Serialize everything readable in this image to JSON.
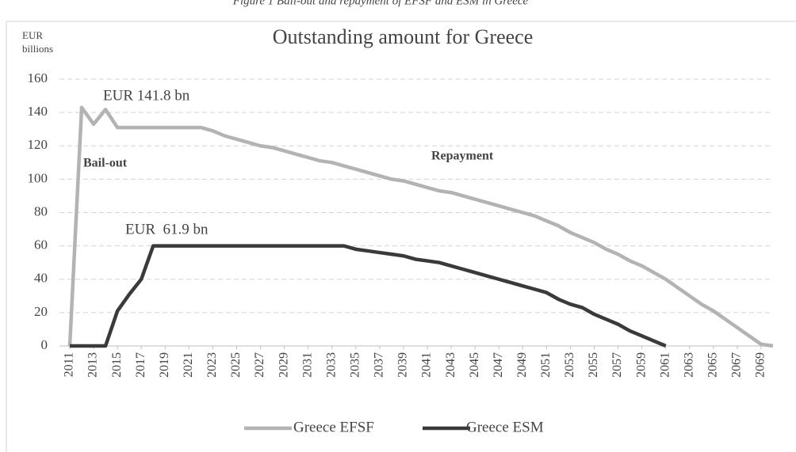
{
  "chart_data": {
    "type": "line",
    "caption": "Figure 1 Bail-out and repayment of EFSF and ESM in Greece",
    "title": "Outstanding amount for Greece",
    "y_label": [
      "EUR",
      "billions"
    ],
    "annotations": [
      "EUR 141.8 bn",
      "EUR  61.9 bn",
      "Bail-out",
      "Repayment"
    ],
    "x": [
      2011,
      2012,
      2013,
      2014,
      2015,
      2016,
      2017,
      2018,
      2019,
      2020,
      2021,
      2022,
      2023,
      2024,
      2025,
      2026,
      2027,
      2028,
      2029,
      2030,
      2031,
      2032,
      2033,
      2034,
      2035,
      2036,
      2037,
      2038,
      2039,
      2040,
      2041,
      2042,
      2043,
      2044,
      2045,
      2046,
      2047,
      2048,
      2049,
      2050,
      2051,
      2052,
      2053,
      2054,
      2055,
      2056,
      2057,
      2058,
      2059,
      2060,
      2061,
      2062,
      2063,
      2064,
      2065,
      2066,
      2067,
      2068,
      2069,
      2070
    ],
    "series": [
      {
        "name": "Greece EFSF",
        "color": "#b3b3b3",
        "values": [
          0,
          143,
          133,
          141.8,
          131,
          131,
          131,
          131,
          131,
          131,
          131,
          131,
          129,
          126,
          124,
          122,
          120,
          119,
          117,
          115,
          113,
          111,
          110,
          108,
          106,
          104,
          102,
          100,
          99,
          97,
          95,
          93,
          92,
          90,
          88,
          86,
          84,
          82,
          80,
          78,
          75,
          72,
          68,
          65,
          62,
          58,
          55,
          51,
          48,
          44,
          40,
          35,
          30,
          25,
          21,
          16,
          11,
          6,
          1,
          0
        ]
      },
      {
        "name": "Greece ESM",
        "color": "#3a3a3a",
        "values": [
          0,
          0,
          0,
          0,
          21,
          31,
          40,
          60,
          60,
          60,
          60,
          60,
          60,
          60,
          60,
          60,
          60,
          60,
          60,
          60,
          60,
          60,
          60,
          60,
          58,
          57,
          56,
          55,
          54,
          52,
          51,
          50,
          48,
          46,
          44,
          42,
          40,
          38,
          36,
          34,
          32,
          28,
          25,
          23,
          19,
          16,
          13,
          9,
          6,
          3,
          0,
          null,
          null,
          null,
          null,
          null,
          null,
          null,
          null,
          null
        ]
      }
    ],
    "xlim": [
      2011,
      2070
    ],
    "xticks": [
      2011,
      2013,
      2015,
      2017,
      2019,
      2021,
      2023,
      2025,
      2027,
      2029,
      2031,
      2033,
      2035,
      2037,
      2039,
      2041,
      2043,
      2045,
      2047,
      2049,
      2051,
      2053,
      2055,
      2057,
      2059,
      2061,
      2063,
      2065,
      2067,
      2069
    ],
    "ylim": [
      0,
      160
    ],
    "yticks": [
      0,
      20,
      40,
      60,
      80,
      100,
      120,
      140,
      160
    ],
    "grid": true,
    "legend": "bottom"
  }
}
